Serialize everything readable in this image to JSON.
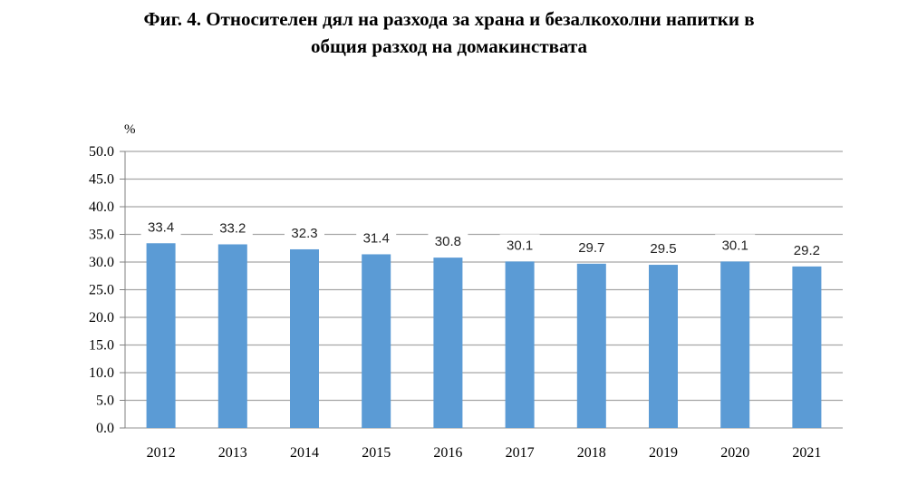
{
  "title": {
    "line1": "Фиг. 4. Относителен дял на разхода за храна и безалкохолни напитки в",
    "line2": "общия разход на домакинствата"
  },
  "chart_data": {
    "type": "bar",
    "title": "Фиг. 4. Относителен дял на разхода за храна и безалкохолни напитки в общия разход на домакинствата",
    "unit_label": "%",
    "xlabel": "",
    "ylabel": "",
    "categories": [
      "2012",
      "2013",
      "2014",
      "2015",
      "2016",
      "2017",
      "2018",
      "2019",
      "2020",
      "2021"
    ],
    "values": [
      33.4,
      33.2,
      32.3,
      31.4,
      30.8,
      30.1,
      29.7,
      29.5,
      30.1,
      29.2
    ],
    "data_labels": [
      "33.4",
      "33.2",
      "32.3",
      "31.4",
      "30.8",
      "30.1",
      "29.7",
      "29.5",
      "30.1",
      "29.2"
    ],
    "ylim": [
      0,
      50
    ],
    "yticks": [
      "0.0",
      "5.0",
      "10.0",
      "15.0",
      "20.0",
      "25.0",
      "30.0",
      "35.0",
      "40.0",
      "45.0",
      "50.0"
    ],
    "grid": true,
    "bar_color": "#5b9bd5",
    "grid_color": "#a6a6a6"
  }
}
